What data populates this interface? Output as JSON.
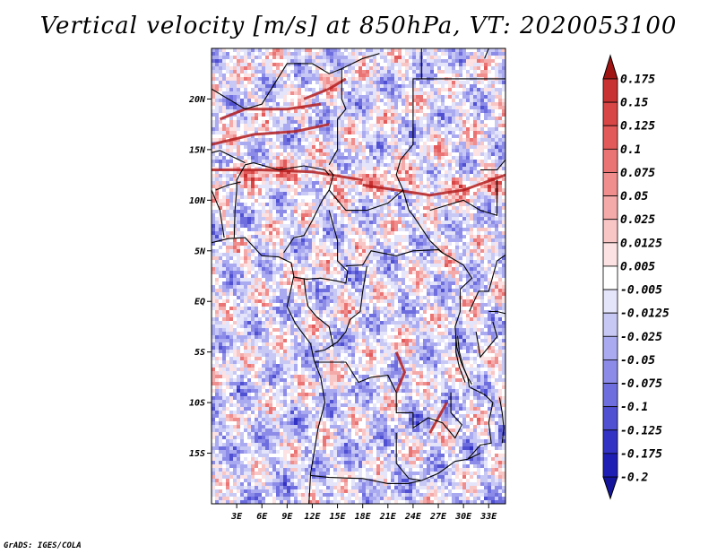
{
  "title": "Vertical velocity [m/s] at 850hPa, VT: 2020053100",
  "credit": "GrADS: IGES/COLA",
  "map": {
    "lon_range": [
      0,
      35
    ],
    "lat_range": [
      -20,
      25
    ],
    "x_ticks": [
      {
        "value": 3,
        "label": "3E"
      },
      {
        "value": 6,
        "label": "6E"
      },
      {
        "value": 9,
        "label": "9E"
      },
      {
        "value": 12,
        "label": "12E"
      },
      {
        "value": 15,
        "label": "15E"
      },
      {
        "value": 18,
        "label": "18E"
      },
      {
        "value": 21,
        "label": "21E"
      },
      {
        "value": 24,
        "label": "24E"
      },
      {
        "value": 27,
        "label": "27E"
      },
      {
        "value": 30,
        "label": "30E"
      },
      {
        "value": 33,
        "label": "33E"
      }
    ],
    "y_ticks": [
      {
        "value": 20,
        "label": "20N"
      },
      {
        "value": 15,
        "label": "15N"
      },
      {
        "value": 10,
        "label": "10N"
      },
      {
        "value": 5,
        "label": "5N"
      },
      {
        "value": 0,
        "label": "EQ"
      },
      {
        "value": -5,
        "label": "5S"
      },
      {
        "value": -10,
        "label": "10S"
      },
      {
        "value": -15,
        "label": "15S"
      }
    ]
  },
  "colorbar": {
    "levels": [
      {
        "label": "0.175",
        "color": "#b41e1e"
      },
      {
        "label": "0.15",
        "color": "#c83232"
      },
      {
        "label": "0.125",
        "color": "#d84646"
      },
      {
        "label": "0.1",
        "color": "#e25a5a"
      },
      {
        "label": "0.075",
        "color": "#ea7474"
      },
      {
        "label": "0.05",
        "color": "#f08e8e"
      },
      {
        "label": "0.025",
        "color": "#f5aaaa"
      },
      {
        "label": "0.0125",
        "color": "#f9c6c6"
      },
      {
        "label": "0.005",
        "color": "#fce2e2"
      },
      {
        "label": "-0.005",
        "color": "#ffffff"
      },
      {
        "label": "-0.0125",
        "color": "#e4e4fa"
      },
      {
        "label": "-0.025",
        "color": "#c8c8f5"
      },
      {
        "label": "-0.05",
        "color": "#aaaaf0"
      },
      {
        "label": "-0.075",
        "color": "#8c8ce8"
      },
      {
        "label": "-0.1",
        "color": "#6e6ede"
      },
      {
        "label": "-0.125",
        "color": "#5050d2"
      },
      {
        "label": "-0.175",
        "color": "#3232c4"
      },
      {
        "label": "-0.2",
        "color": "#1e1eb4"
      }
    ],
    "top_color": "#a01414",
    "bottom_color": "#14149c"
  }
}
